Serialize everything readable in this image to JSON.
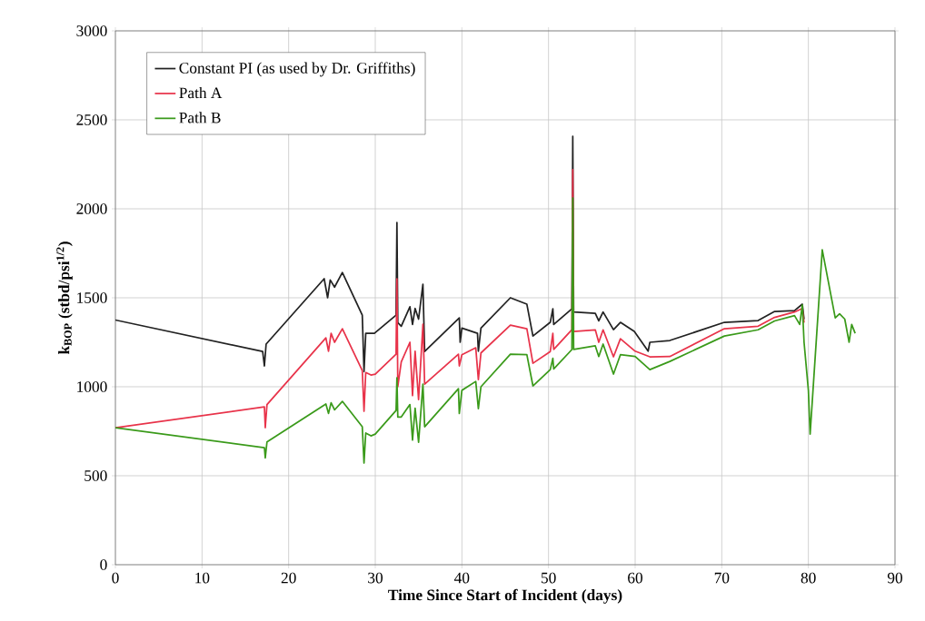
{
  "chart_data": {
    "type": "line",
    "xlabel": "Time Since Start of Incident (days)",
    "ylabel": "k$_{BOP}$ (stbd/psi$^{1/2}$)",
    "xlim": [
      0,
      90
    ],
    "xticks": [
      0,
      10,
      20,
      30,
      40,
      50,
      60,
      70,
      80,
      90
    ],
    "ylim": [
      0,
      3000
    ],
    "yticks": [
      0,
      500,
      1000,
      1500,
      2000,
      2500,
      3000
    ],
    "grid": true,
    "legend": "top left",
    "marker": "none",
    "line_style": "solid",
    "series": [
      {
        "name": "Constant PI (as used by Dr. Griffiths)",
        "color": "#222222",
        "x": [
          0,
          17.0,
          17.2,
          17.4,
          24.1,
          24.5,
          24.8,
          25.3,
          26.2,
          28.5,
          28.7,
          28.9,
          29.9,
          32.4,
          32.5,
          32.6,
          33.0,
          34.0,
          34.3,
          34.6,
          35.0,
          35.5,
          35.7,
          39.7,
          39.8,
          40.0,
          41.8,
          41.9,
          42.2,
          45.6,
          47.5,
          48.2,
          50.2,
          50.5,
          50.6,
          52.7,
          52.8,
          52.9,
          55.4,
          55.8,
          56.3,
          57.5,
          58.3,
          59.9,
          61.5,
          61.7,
          64.0,
          70.3,
          74.2,
          76.1,
          78.4,
          79.3,
          79.5
        ],
        "values": [
          1375,
          1198,
          1117,
          1240,
          1607,
          1500,
          1600,
          1560,
          1642,
          1402,
          1085,
          1300,
          1300,
          1402,
          1923,
          1360,
          1340,
          1450,
          1350,
          1440,
          1380,
          1576,
          1198,
          1387,
          1250,
          1330,
          1300,
          1200,
          1330,
          1500,
          1464,
          1285,
          1362,
          1438,
          1350,
          1438,
          2407,
          1420,
          1413,
          1370,
          1420,
          1321,
          1362,
          1311,
          1200,
          1250,
          1260,
          1362,
          1372,
          1423,
          1428,
          1464,
          1380
        ]
      },
      {
        "name": "Path A",
        "color": "#e8334a",
        "x": [
          0,
          17.2,
          17.3,
          17.5,
          24.3,
          24.6,
          24.9,
          25.3,
          26.2,
          28.5,
          28.7,
          28.9,
          29.5,
          30.0,
          32.4,
          32.5,
          32.6,
          33.0,
          34.0,
          34.3,
          34.6,
          35.0,
          35.5,
          35.7,
          39.6,
          39.7,
          40.0,
          41.6,
          41.9,
          42.2,
          45.6,
          47.5,
          48.2,
          50.2,
          50.5,
          50.6,
          52.7,
          52.8,
          52.9,
          55.4,
          55.8,
          56.3,
          57.5,
          58.3,
          60.0,
          61.7,
          64.0,
          70.3,
          74.2,
          76.1,
          78.4,
          79.3,
          79.5
        ],
        "values": [
          770,
          887,
          770,
          900,
          1275,
          1200,
          1300,
          1250,
          1326,
          1091,
          862,
          1080,
          1066,
          1071,
          1183,
          1607,
          1000,
          1140,
          1250,
          950,
          1200,
          928,
          1351,
          1015,
          1183,
          1117,
          1180,
          1219,
          1040,
          1190,
          1346,
          1326,
          1132,
          1198,
          1300,
          1210,
          1321,
          2220,
          1310,
          1320,
          1250,
          1320,
          1168,
          1270,
          1200,
          1168,
          1170,
          1326,
          1340,
          1390,
          1420,
          1440,
          1360
        ]
      },
      {
        "name": "Path B",
        "color": "#3a9a1a",
        "x": [
          0,
          17.2,
          17.3,
          17.5,
          24.3,
          24.6,
          24.9,
          25.3,
          26.2,
          28.5,
          28.7,
          28.9,
          29.5,
          30.0,
          32.4,
          32.5,
          32.6,
          33.0,
          34.0,
          34.3,
          34.6,
          35.0,
          35.5,
          35.7,
          39.6,
          39.7,
          40.0,
          41.6,
          41.9,
          42.2,
          45.6,
          47.5,
          48.2,
          50.2,
          50.5,
          50.6,
          52.7,
          52.8,
          52.9,
          55.4,
          55.8,
          56.3,
          57.5,
          58.3,
          60.0,
          61.7,
          64.0,
          70.3,
          74.2,
          76.1,
          78.4,
          79.0,
          79.3,
          79.5,
          80.0,
          80.2,
          81.6,
          83.1,
          83.6,
          84.2,
          84.7,
          85.0,
          85.4
        ],
        "values": [
          770,
          658,
          600,
          690,
          903,
          850,
          910,
          870,
          918,
          775,
          571,
          740,
          724,
          734,
          867,
          1050,
          830,
          830,
          900,
          700,
          880,
          688,
          1015,
          775,
          989,
          850,
          980,
          1030,
          877,
          1000,
          1183,
          1180,
          1005,
          1096,
          1160,
          1100,
          1209,
          2060,
          1210,
          1230,
          1170,
          1240,
          1071,
          1180,
          1170,
          1096,
          1142,
          1285,
          1320,
          1370,
          1400,
          1350,
          1460,
          1250,
          979,
          734,
          1770,
          1387,
          1410,
          1380,
          1250,
          1350,
          1300
        ]
      }
    ]
  }
}
